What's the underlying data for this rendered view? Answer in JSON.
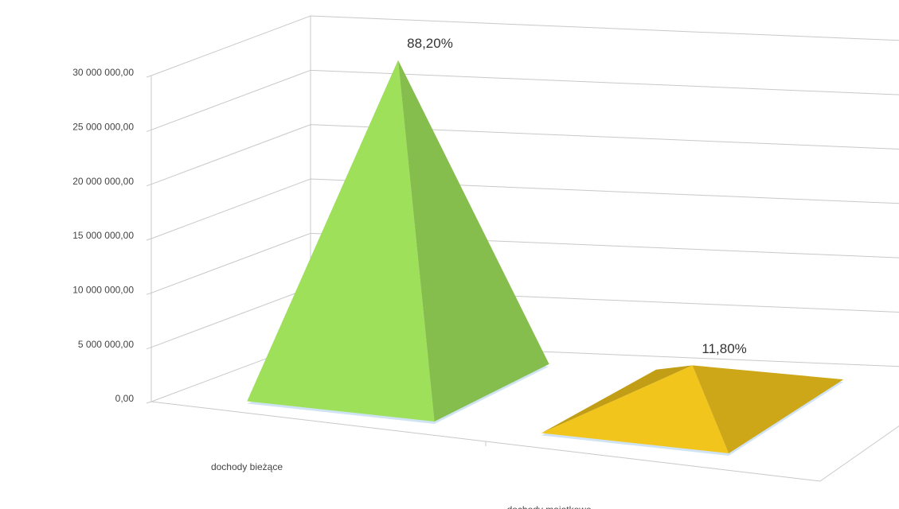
{
  "chart_data": {
    "type": "pyramid3d",
    "categories": [
      "dochody bieżące",
      "dochody majątkowe"
    ],
    "values": [
      29900000,
      4000000
    ],
    "percent_labels": [
      "88,20%",
      "11,80%"
    ],
    "colors": [
      "#9ee05a",
      "#f2c51c"
    ],
    "ylim": [
      0,
      30000000
    ],
    "yticks": [
      {
        "value": 0,
        "label": "0,00"
      },
      {
        "value": 5000000,
        "label": "5 000 000,00"
      },
      {
        "value": 10000000,
        "label": "10 000 000,00"
      },
      {
        "value": 15000000,
        "label": "15 000 000,00"
      },
      {
        "value": 20000000,
        "label": "20 000 000,00"
      },
      {
        "value": 25000000,
        "label": "25 000 000,00"
      },
      {
        "value": 30000000,
        "label": "30 000 000,00"
      }
    ],
    "grid": true
  }
}
